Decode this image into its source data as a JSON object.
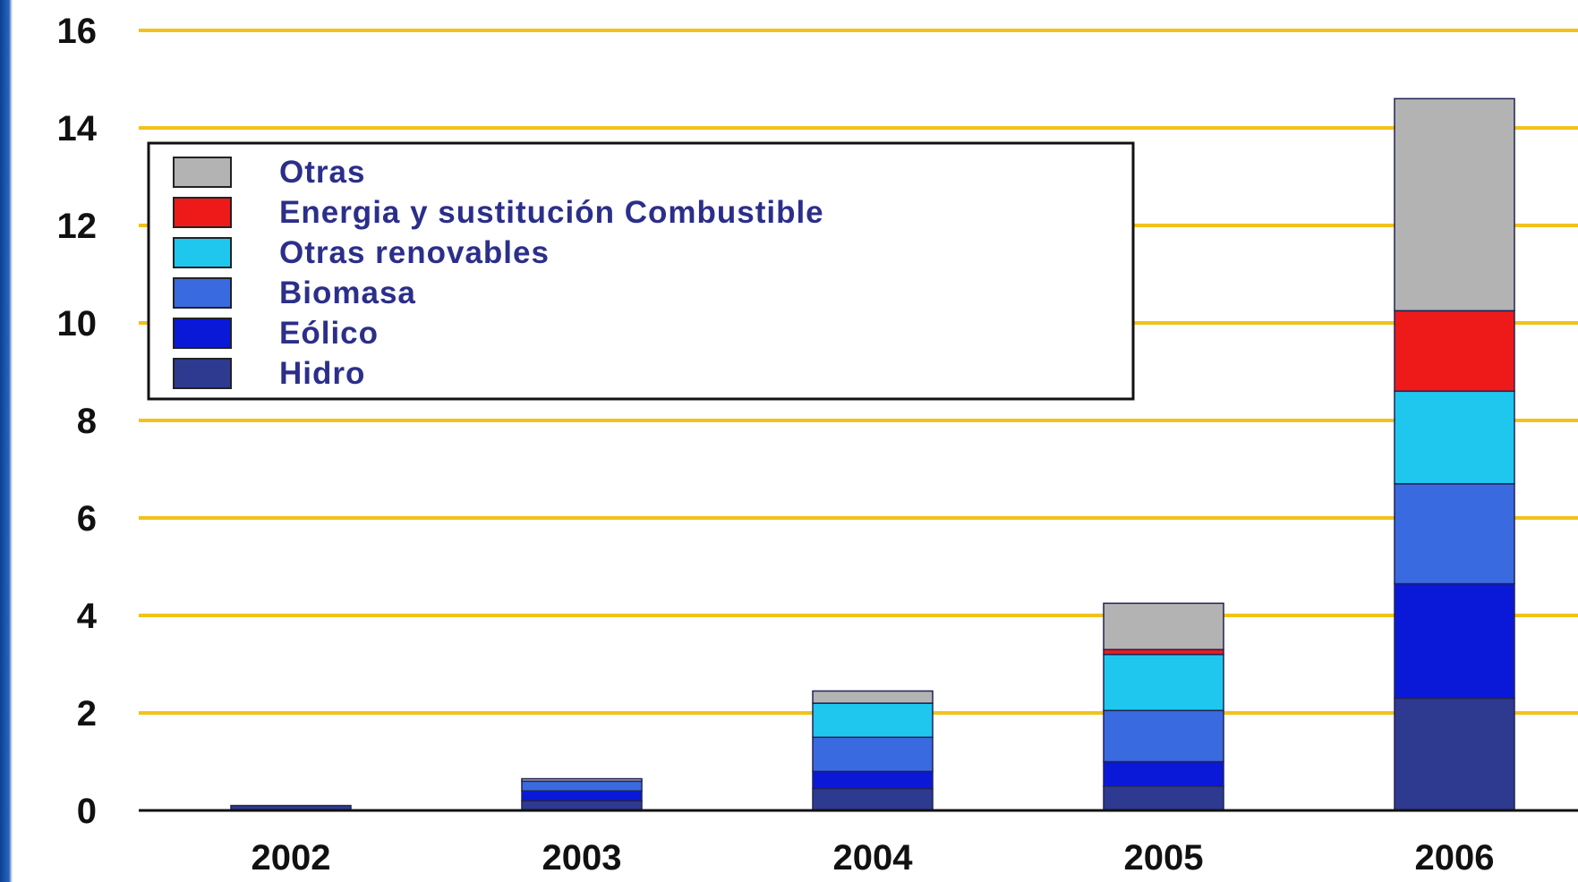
{
  "chart_data": {
    "type": "bar",
    "stacked": true,
    "categories": [
      "2002",
      "2003",
      "2004",
      "2005",
      "2006"
    ],
    "ylim": [
      0,
      16
    ],
    "yticks": [
      0,
      2,
      4,
      6,
      8,
      10,
      12,
      14,
      16
    ],
    "grid": true,
    "legend_placement": "top-left",
    "series": [
      {
        "name": "Hidro",
        "color": "#2e3a8f",
        "values": [
          0.1,
          0.2,
          0.45,
          0.5,
          2.3
        ]
      },
      {
        "name": "Eólico",
        "color": "#0a18d8",
        "values": [
          0.0,
          0.2,
          0.35,
          0.5,
          2.35
        ]
      },
      {
        "name": "Biomasa",
        "color": "#3a6ae0",
        "values": [
          0.0,
          0.2,
          0.7,
          1.05,
          2.05
        ]
      },
      {
        "name": "Otras renovables",
        "color": "#1fc7ef",
        "values": [
          0.0,
          0.0,
          0.7,
          1.15,
          1.9
        ]
      },
      {
        "name": "Energia y sustitución Combustible",
        "color": "#ee1a1a",
        "values": [
          0.0,
          0.0,
          0.0,
          0.1,
          1.65
        ]
      },
      {
        "name": "Otras",
        "color": "#b3b3b3",
        "values": [
          0.0,
          0.05,
          0.25,
          0.95,
          4.35
        ]
      }
    ]
  },
  "legend_order": [
    "Otras",
    "Energia y sustitución Combustible",
    "Otras renovables",
    "Biomasa",
    "Eólico",
    "Hidro"
  ]
}
